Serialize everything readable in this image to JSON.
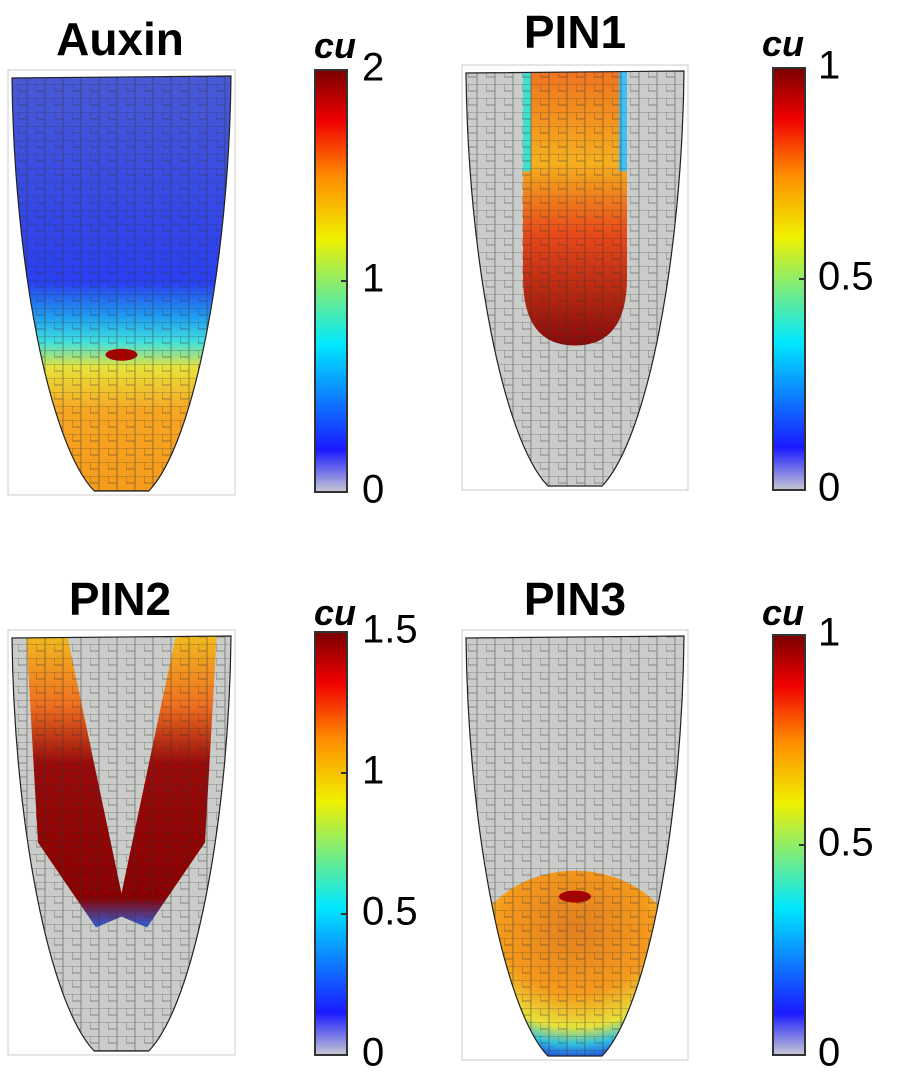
{
  "panels": [
    {
      "title": "Auxin",
      "unit": "cu",
      "clim": [
        0,
        2
      ],
      "cticks": [
        0,
        1,
        2
      ]
    },
    {
      "title": "PIN1",
      "unit": "cu",
      "clim": [
        0,
        1
      ],
      "cticks": [
        0,
        0.5,
        1
      ]
    },
    {
      "title": "PIN2",
      "unit": "cu",
      "clim": [
        0,
        1.5
      ],
      "cticks": [
        0,
        0.5,
        1,
        1.5
      ]
    },
    {
      "title": "PIN3",
      "unit": "cu",
      "clim": [
        0,
        1
      ],
      "cticks": [
        0,
        0.5,
        1
      ]
    }
  ]
}
